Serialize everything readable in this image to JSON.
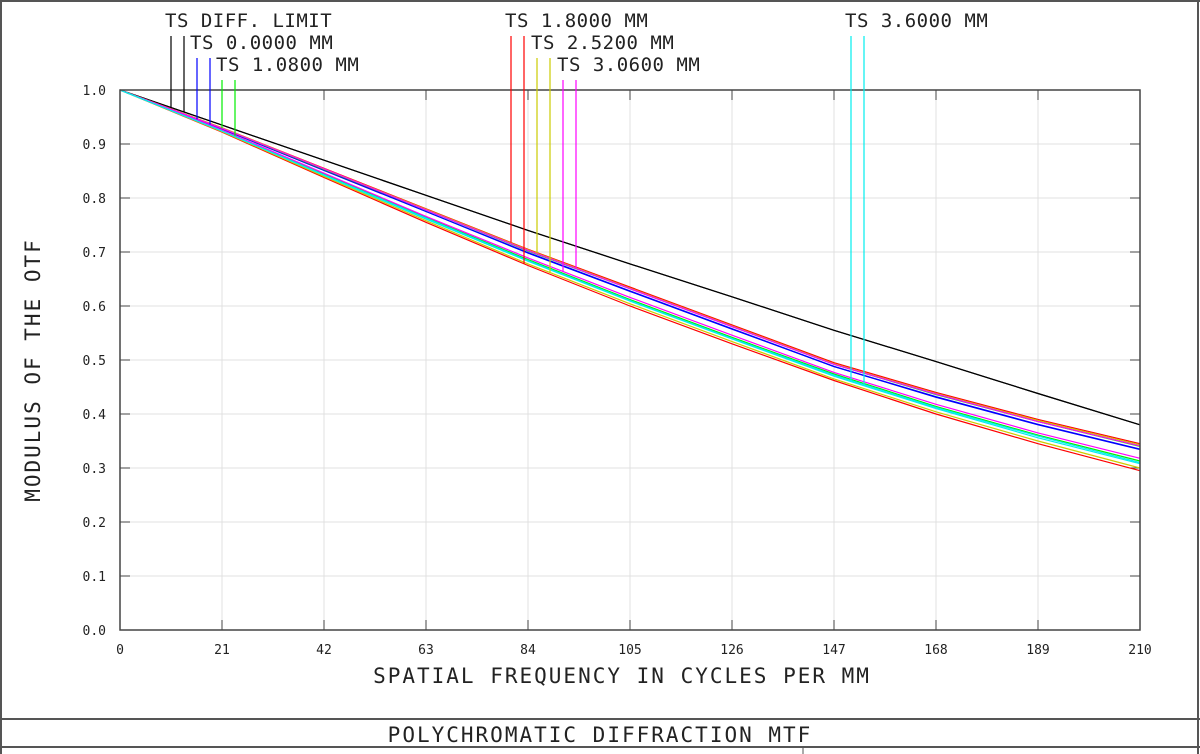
{
  "chart_data": {
    "type": "line",
    "title": "POLYCHROMATIC DIFFRACTION MTF",
    "xlabel": "SPATIAL FREQUENCY IN CYCLES PER MM",
    "ylabel": "MODULUS OF THE OTF",
    "xlim": [
      0,
      210
    ],
    "ylim": [
      0,
      1.0
    ],
    "grid": true,
    "x_ticks": [
      "0",
      "21",
      "42",
      "63",
      "84",
      "105",
      "126",
      "147",
      "168",
      "189",
      "210"
    ],
    "y_ticks": [
      "0.0",
      "0.1",
      "0.2",
      "0.3",
      "0.4",
      "0.5",
      "0.6",
      "0.7",
      "0.8",
      "0.9",
      "1.0"
    ],
    "x": [
      0,
      21,
      42,
      63,
      84,
      105,
      126,
      147,
      168,
      189,
      210
    ],
    "legend": [
      {
        "label": "TS DIFF. LIMIT",
        "color": "#000000"
      },
      {
        "label": "TS 0.0000 MM",
        "color": "#0000ff"
      },
      {
        "label": "TS 1.0800 MM",
        "color": "#00ee00"
      },
      {
        "label": "TS 1.8000 MM",
        "color": "#ff0000"
      },
      {
        "label": "TS 2.5200 MM",
        "color": "#cccc00"
      },
      {
        "label": "TS 3.0600 MM",
        "color": "#ff00ff"
      },
      {
        "label": "TS 3.6000 MM",
        "color": "#00eeee"
      }
    ],
    "series": [
      {
        "name": "DIFF. LIMIT T",
        "legend": 0,
        "values": [
          1,
          0.935,
          0.87,
          0.805,
          0.74,
          0.678,
          0.617,
          0.555,
          0.497,
          0.438,
          0.38
        ]
      },
      {
        "name": "DIFF. LIMIT S",
        "legend": 0,
        "values": [
          1,
          0.935,
          0.87,
          0.805,
          0.74,
          0.678,
          0.617,
          0.555,
          0.497,
          0.438,
          0.38
        ]
      },
      {
        "name": "0.0000 MM T",
        "legend": 1,
        "values": [
          1,
          0.928,
          0.852,
          0.775,
          0.699,
          0.628,
          0.558,
          0.488,
          0.432,
          0.381,
          0.335
        ]
      },
      {
        "name": "0.0000 MM S",
        "legend": 1,
        "values": [
          1,
          0.928,
          0.851,
          0.775,
          0.698,
          0.627,
          0.557,
          0.488,
          0.431,
          0.38,
          0.334
        ]
      },
      {
        "name": "1.0800 MM T",
        "legend": 2,
        "values": [
          1,
          0.929,
          0.853,
          0.778,
          0.702,
          0.632,
          0.562,
          0.492,
          0.436,
          0.386,
          0.34
        ]
      },
      {
        "name": "1.0800 MM S",
        "legend": 2,
        "values": [
          1,
          0.925,
          0.844,
          0.764,
          0.686,
          0.612,
          0.542,
          0.474,
          0.414,
          0.361,
          0.313
        ]
      },
      {
        "name": "1.8000 MM T",
        "legend": 3,
        "values": [
          1,
          0.93,
          0.855,
          0.78,
          0.705,
          0.635,
          0.565,
          0.495,
          0.44,
          0.39,
          0.345
        ]
      },
      {
        "name": "1.8000 MM S",
        "legend": 3,
        "values": [
          1,
          0.922,
          0.838,
          0.755,
          0.675,
          0.6,
          0.53,
          0.462,
          0.4,
          0.345,
          0.295
        ]
      },
      {
        "name": "2.5200 MM T",
        "legend": 4,
        "values": [
          1,
          0.93,
          0.854,
          0.779,
          0.704,
          0.633,
          0.563,
          0.493,
          0.438,
          0.388,
          0.343
        ]
      },
      {
        "name": "2.5200 MM S",
        "legend": 4,
        "values": [
          1,
          0.923,
          0.84,
          0.758,
          0.678,
          0.604,
          0.534,
          0.465,
          0.404,
          0.35,
          0.3
        ]
      },
      {
        "name": "3.0600 MM T",
        "legend": 5,
        "values": [
          1,
          0.926,
          0.846,
          0.766,
          0.689,
          0.616,
          0.546,
          0.477,
          0.418,
          0.365,
          0.318
        ]
      },
      {
        "name": "3.0600 MM S",
        "legend": 5,
        "values": [
          1,
          0.929,
          0.854,
          0.778,
          0.703,
          0.632,
          0.562,
          0.492,
          0.437,
          0.386,
          0.341
        ]
      },
      {
        "name": "3.6000 MM T",
        "legend": 6,
        "values": [
          1,
          0.924,
          0.843,
          0.763,
          0.684,
          0.61,
          0.54,
          0.472,
          0.412,
          0.359,
          0.31
        ]
      },
      {
        "name": "3.6000 MM S",
        "legend": 6,
        "values": [
          1,
          0.924,
          0.842,
          0.761,
          0.683,
          0.609,
          0.539,
          0.47,
          0.41,
          0.356,
          0.308
        ]
      }
    ]
  }
}
